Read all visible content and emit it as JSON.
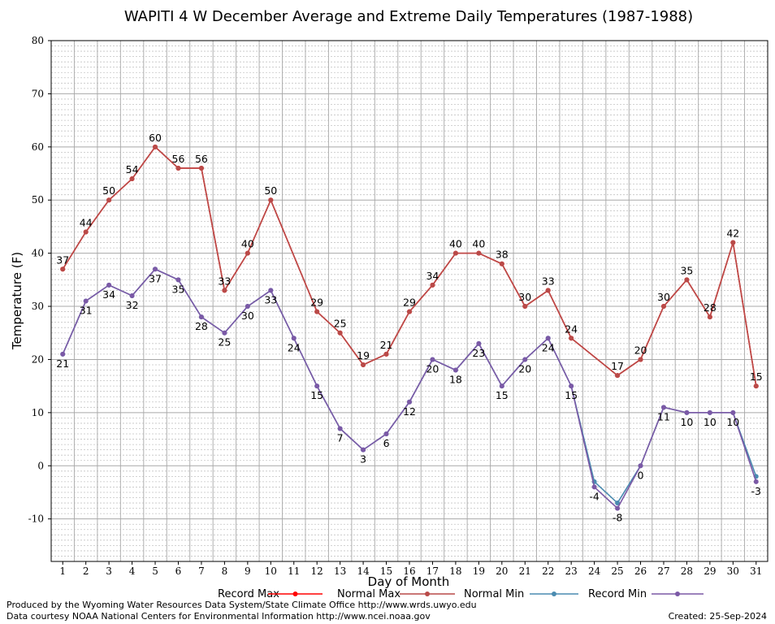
{
  "chart_data": {
    "type": "line",
    "title": "WAPITI 4 W December Average and Extreme Daily Temperatures (1987-1988)",
    "xlabel": "Day of Month",
    "ylabel": "Temperature (F)",
    "ylim": [
      -18,
      80
    ],
    "yticks": [
      -10,
      0,
      10,
      20,
      30,
      40,
      50,
      60,
      70,
      80
    ],
    "x": [
      1,
      2,
      3,
      4,
      5,
      6,
      7,
      8,
      9,
      10,
      11,
      12,
      13,
      14,
      15,
      16,
      17,
      18,
      19,
      20,
      21,
      22,
      23,
      24,
      25,
      26,
      27,
      28,
      29,
      30,
      31
    ],
    "grid": true,
    "legend_position": "bottom",
    "series": [
      {
        "name": "Record Max",
        "color": "#ff0000",
        "values": [
          37,
          44,
          50,
          54,
          60,
          56,
          56,
          33,
          40,
          50,
          null,
          29,
          25,
          19,
          21,
          29,
          34,
          40,
          40,
          38,
          30,
          33,
          24,
          null,
          17,
          20,
          30,
          35,
          28,
          42,
          15
        ]
      },
      {
        "name": "Normal Max",
        "color": "#b94a48",
        "values": [
          37,
          44,
          50,
          54,
          60,
          56,
          56,
          33,
          40,
          50,
          null,
          29,
          25,
          19,
          21,
          29,
          34,
          40,
          40,
          38,
          30,
          33,
          24,
          null,
          17,
          20,
          30,
          35,
          28,
          42,
          15
        ]
      },
      {
        "name": "Normal Min",
        "color": "#4a8bb0",
        "values": [
          21,
          31,
          34,
          32,
          37,
          35,
          28,
          25,
          30,
          33,
          24,
          15,
          7,
          3,
          6,
          12,
          20,
          18,
          23,
          15,
          20,
          24,
          15,
          -3,
          -7,
          0,
          11,
          10,
          10,
          10,
          -2
        ]
      },
      {
        "name": "Record Min",
        "color": "#7b59a6",
        "values": [
          21,
          31,
          34,
          32,
          37,
          35,
          28,
          25,
          30,
          33,
          24,
          15,
          7,
          3,
          6,
          12,
          20,
          18,
          23,
          15,
          20,
          24,
          15,
          -4,
          -8,
          0,
          11,
          10,
          10,
          10,
          -3
        ]
      }
    ],
    "max_labels": [
      {
        "day": 1,
        "text": "37"
      },
      {
        "day": 2,
        "text": "44"
      },
      {
        "day": 3,
        "text": "50"
      },
      {
        "day": 4,
        "text": "54"
      },
      {
        "day": 5,
        "text": "60"
      },
      {
        "day": 6,
        "text": "56"
      },
      {
        "day": 7,
        "text": "56"
      },
      {
        "day": 8,
        "text": "33"
      },
      {
        "day": 9,
        "text": "40"
      },
      {
        "day": 10,
        "text": "50"
      },
      {
        "day": 12,
        "text": "29"
      },
      {
        "day": 13,
        "text": "25"
      },
      {
        "day": 14,
        "text": "19"
      },
      {
        "day": 15,
        "text": "21"
      },
      {
        "day": 16,
        "text": "29"
      },
      {
        "day": 17,
        "text": "34"
      },
      {
        "day": 18,
        "text": "40"
      },
      {
        "day": 19,
        "text": "40"
      },
      {
        "day": 20,
        "text": "38"
      },
      {
        "day": 21,
        "text": "30"
      },
      {
        "day": 22,
        "text": "33"
      },
      {
        "day": 23,
        "text": "24"
      },
      {
        "day": 25,
        "text": "17"
      },
      {
        "day": 26,
        "text": "20"
      },
      {
        "day": 27,
        "text": "30"
      },
      {
        "day": 28,
        "text": "35"
      },
      {
        "day": 29,
        "text": "28"
      },
      {
        "day": 30,
        "text": "42"
      },
      {
        "day": 31,
        "text": "15"
      }
    ],
    "min_labels": [
      {
        "day": 1,
        "text": "21"
      },
      {
        "day": 2,
        "text": "31"
      },
      {
        "day": 3,
        "text": "34"
      },
      {
        "day": 4,
        "text": "32"
      },
      {
        "day": 5,
        "text": "37"
      },
      {
        "day": 6,
        "text": "35"
      },
      {
        "day": 7,
        "text": "28"
      },
      {
        "day": 8,
        "text": "25"
      },
      {
        "day": 9,
        "text": "30"
      },
      {
        "day": 10,
        "text": "33"
      },
      {
        "day": 11,
        "text": "24"
      },
      {
        "day": 12,
        "text": "15"
      },
      {
        "day": 13,
        "text": "7"
      },
      {
        "day": 14,
        "text": "3"
      },
      {
        "day": 15,
        "text": "6"
      },
      {
        "day": 16,
        "text": "12"
      },
      {
        "day": 17,
        "text": "20"
      },
      {
        "day": 18,
        "text": "18"
      },
      {
        "day": 19,
        "text": "23"
      },
      {
        "day": 20,
        "text": "15"
      },
      {
        "day": 21,
        "text": "20"
      },
      {
        "day": 22,
        "text": "24"
      },
      {
        "day": 23,
        "text": "15"
      },
      {
        "day": 24,
        "text": "-4"
      },
      {
        "day": 25,
        "text": "-8"
      },
      {
        "day": 26,
        "text": "0"
      },
      {
        "day": 27,
        "text": "11"
      },
      {
        "day": 28,
        "text": "10"
      },
      {
        "day": 29,
        "text": "10"
      },
      {
        "day": 30,
        "text": "10"
      },
      {
        "day": 31,
        "text": "-3"
      }
    ]
  },
  "footer": {
    "line1": "Produced by the Wyoming Water Resources Data System/State Climate Office http://www.wrds.uwyo.edu",
    "line2": "Data courtesy NOAA National Centers for Environmental Information http://www.ncei.noaa.gov",
    "created": "Created:  25-Sep-2024"
  }
}
